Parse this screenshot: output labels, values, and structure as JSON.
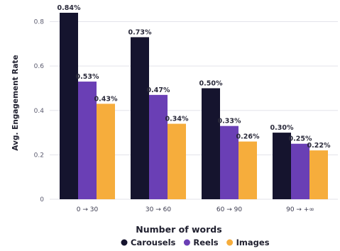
{
  "chart_data": {
    "type": "bar",
    "categories": [
      "0 → 30",
      "30 → 60",
      "60 → 90",
      "90 → +∞"
    ],
    "series": [
      {
        "name": "Carousels",
        "color": "#15142e",
        "values": [
          0.84,
          0.73,
          0.5,
          0.3
        ],
        "labels": [
          "0.84%",
          "0.73%",
          "0.50%",
          "0.30%"
        ]
      },
      {
        "name": "Reels",
        "color": "#6a3fb5",
        "values": [
          0.53,
          0.47,
          0.33,
          0.25
        ],
        "labels": [
          "0.53%",
          "0.47%",
          "0.33%",
          "0.25%"
        ]
      },
      {
        "name": "Images",
        "color": "#f6ad3c",
        "values": [
          0.43,
          0.34,
          0.26,
          0.22
        ],
        "labels": [
          "0.43%",
          "0.34%",
          "0.26%",
          "0.22%"
        ]
      }
    ],
    "ylabel": "Avg. Engagement Rate",
    "xlabel": "Number of words",
    "ylim": [
      0,
      0.84
    ],
    "yticks": [
      0,
      0.2,
      0.4,
      0.6,
      0.8
    ],
    "ytick_labels": [
      "0",
      "0.2",
      "0.4",
      "0.6",
      "0.8"
    ],
    "grid": "horizontal",
    "legend": "bottom-center"
  }
}
